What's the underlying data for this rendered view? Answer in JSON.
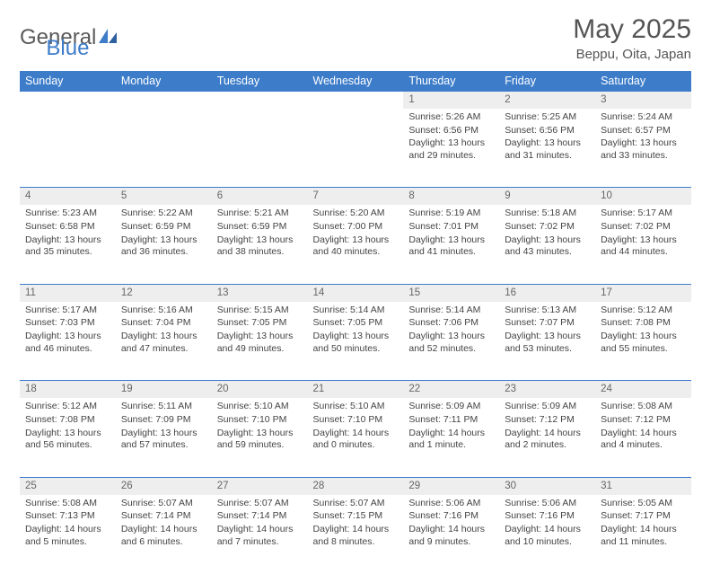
{
  "logo": {
    "text1": "General",
    "text2": "Blue"
  },
  "title": "May 2025",
  "location": "Beppu, Oita, Japan",
  "colors": {
    "header_bg": "#3d7cc9",
    "header_fg": "#ffffff",
    "daynum_bg": "#eeeeee",
    "border": "#3d7cc9",
    "text": "#444444",
    "background": "#ffffff"
  },
  "typography": {
    "title_fontsize_pt": 22,
    "location_fontsize_pt": 11,
    "dayheader_fontsize_pt": 9,
    "cell_fontsize_pt": 8
  },
  "layout": {
    "columns": 7,
    "rows": 5,
    "start_day_index": 4
  },
  "day_headers": [
    "Sunday",
    "Monday",
    "Tuesday",
    "Wednesday",
    "Thursday",
    "Friday",
    "Saturday"
  ],
  "weeks": [
    [
      null,
      null,
      null,
      null,
      {
        "n": "1",
        "sr": "5:26 AM",
        "ss": "6:56 PM",
        "dl": "13 hours and 29 minutes."
      },
      {
        "n": "2",
        "sr": "5:25 AM",
        "ss": "6:56 PM",
        "dl": "13 hours and 31 minutes."
      },
      {
        "n": "3",
        "sr": "5:24 AM",
        "ss": "6:57 PM",
        "dl": "13 hours and 33 minutes."
      }
    ],
    [
      {
        "n": "4",
        "sr": "5:23 AM",
        "ss": "6:58 PM",
        "dl": "13 hours and 35 minutes."
      },
      {
        "n": "5",
        "sr": "5:22 AM",
        "ss": "6:59 PM",
        "dl": "13 hours and 36 minutes."
      },
      {
        "n": "6",
        "sr": "5:21 AM",
        "ss": "6:59 PM",
        "dl": "13 hours and 38 minutes."
      },
      {
        "n": "7",
        "sr": "5:20 AM",
        "ss": "7:00 PM",
        "dl": "13 hours and 40 minutes."
      },
      {
        "n": "8",
        "sr": "5:19 AM",
        "ss": "7:01 PM",
        "dl": "13 hours and 41 minutes."
      },
      {
        "n": "9",
        "sr": "5:18 AM",
        "ss": "7:02 PM",
        "dl": "13 hours and 43 minutes."
      },
      {
        "n": "10",
        "sr": "5:17 AM",
        "ss": "7:02 PM",
        "dl": "13 hours and 44 minutes."
      }
    ],
    [
      {
        "n": "11",
        "sr": "5:17 AM",
        "ss": "7:03 PM",
        "dl": "13 hours and 46 minutes."
      },
      {
        "n": "12",
        "sr": "5:16 AM",
        "ss": "7:04 PM",
        "dl": "13 hours and 47 minutes."
      },
      {
        "n": "13",
        "sr": "5:15 AM",
        "ss": "7:05 PM",
        "dl": "13 hours and 49 minutes."
      },
      {
        "n": "14",
        "sr": "5:14 AM",
        "ss": "7:05 PM",
        "dl": "13 hours and 50 minutes."
      },
      {
        "n": "15",
        "sr": "5:14 AM",
        "ss": "7:06 PM",
        "dl": "13 hours and 52 minutes."
      },
      {
        "n": "16",
        "sr": "5:13 AM",
        "ss": "7:07 PM",
        "dl": "13 hours and 53 minutes."
      },
      {
        "n": "17",
        "sr": "5:12 AM",
        "ss": "7:08 PM",
        "dl": "13 hours and 55 minutes."
      }
    ],
    [
      {
        "n": "18",
        "sr": "5:12 AM",
        "ss": "7:08 PM",
        "dl": "13 hours and 56 minutes."
      },
      {
        "n": "19",
        "sr": "5:11 AM",
        "ss": "7:09 PM",
        "dl": "13 hours and 57 minutes."
      },
      {
        "n": "20",
        "sr": "5:10 AM",
        "ss": "7:10 PM",
        "dl": "13 hours and 59 minutes."
      },
      {
        "n": "21",
        "sr": "5:10 AM",
        "ss": "7:10 PM",
        "dl": "14 hours and 0 minutes."
      },
      {
        "n": "22",
        "sr": "5:09 AM",
        "ss": "7:11 PM",
        "dl": "14 hours and 1 minute."
      },
      {
        "n": "23",
        "sr": "5:09 AM",
        "ss": "7:12 PM",
        "dl": "14 hours and 2 minutes."
      },
      {
        "n": "24",
        "sr": "5:08 AM",
        "ss": "7:12 PM",
        "dl": "14 hours and 4 minutes."
      }
    ],
    [
      {
        "n": "25",
        "sr": "5:08 AM",
        "ss": "7:13 PM",
        "dl": "14 hours and 5 minutes."
      },
      {
        "n": "26",
        "sr": "5:07 AM",
        "ss": "7:14 PM",
        "dl": "14 hours and 6 minutes."
      },
      {
        "n": "27",
        "sr": "5:07 AM",
        "ss": "7:14 PM",
        "dl": "14 hours and 7 minutes."
      },
      {
        "n": "28",
        "sr": "5:07 AM",
        "ss": "7:15 PM",
        "dl": "14 hours and 8 minutes."
      },
      {
        "n": "29",
        "sr": "5:06 AM",
        "ss": "7:16 PM",
        "dl": "14 hours and 9 minutes."
      },
      {
        "n": "30",
        "sr": "5:06 AM",
        "ss": "7:16 PM",
        "dl": "14 hours and 10 minutes."
      },
      {
        "n": "31",
        "sr": "5:05 AM",
        "ss": "7:17 PM",
        "dl": "14 hours and 11 minutes."
      }
    ]
  ],
  "labels": {
    "sunrise": "Sunrise:",
    "sunset": "Sunset:",
    "daylight": "Daylight:"
  }
}
